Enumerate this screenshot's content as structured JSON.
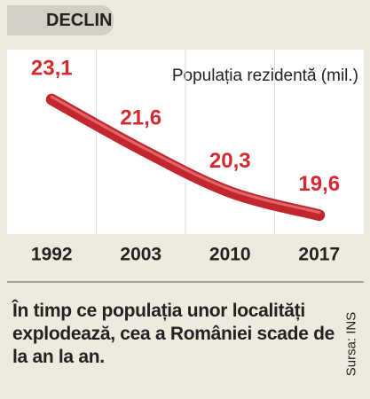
{
  "title": "DECLIN",
  "chart_data": {
    "type": "line",
    "subtitle": "Populația rezidentă (mil.)",
    "categories": [
      "1992",
      "2003",
      "2010",
      "2017"
    ],
    "values": [
      23.1,
      21.6,
      20.3,
      19.6
    ],
    "value_labels": [
      "23,1",
      "21,6",
      "20,3",
      "19,6"
    ],
    "color": "#c1272d",
    "label_color": "#d42a2f",
    "ylim": [
      19,
      24.5
    ]
  },
  "caption": "În timp ce populația unor localități explodează, cea a României scade de la an la an.",
  "source": "Sursa: INS"
}
